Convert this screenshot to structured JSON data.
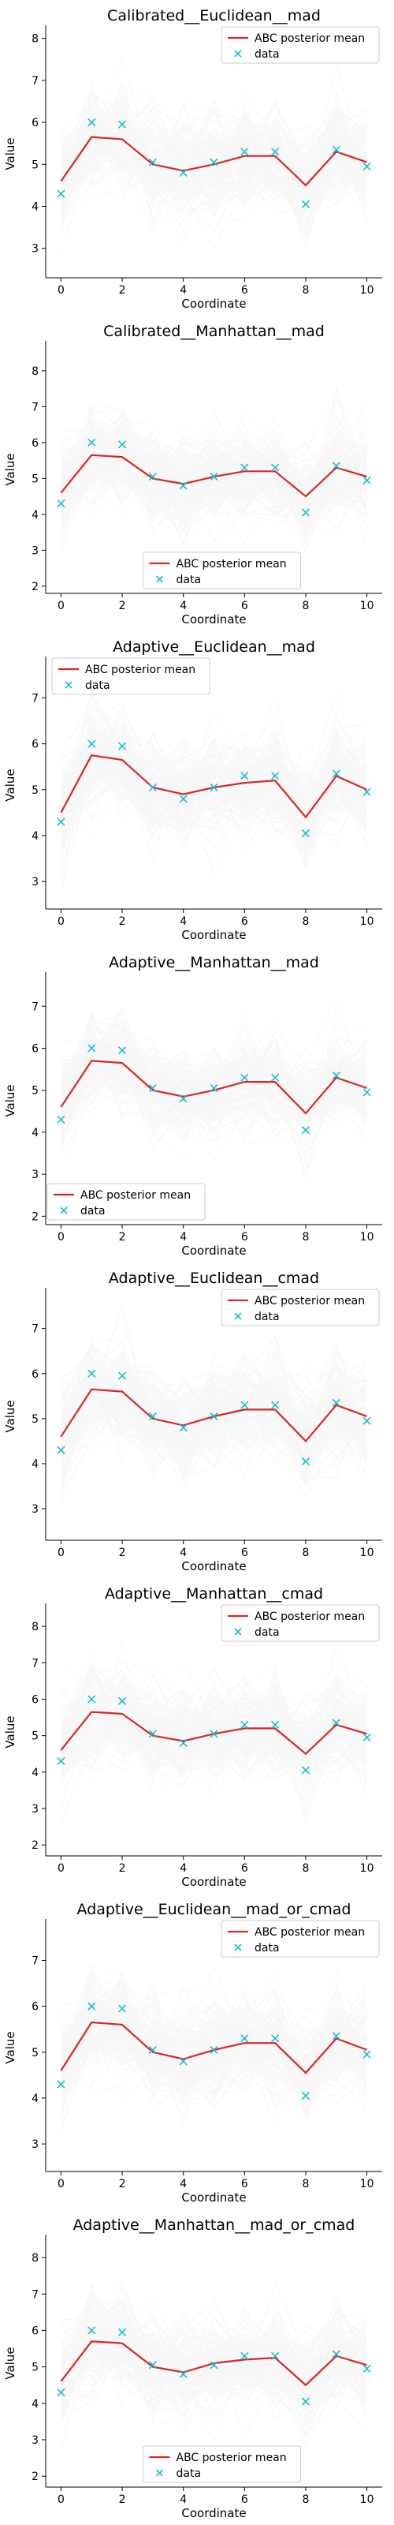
{
  "colors": {
    "mean_line": "#d62728",
    "data_marker": "#17becf",
    "sample_lines": "#888888"
  },
  "chart_data": [
    {
      "type": "line",
      "title": "Calibrated__Euclidean__mad",
      "xlabel": "Coordinate",
      "ylabel": "Value",
      "x": [
        0,
        1,
        2,
        3,
        4,
        5,
        6,
        7,
        8,
        9,
        10
      ],
      "xticks": [
        0,
        2,
        4,
        6,
        8,
        10
      ],
      "yticks": [
        3,
        4,
        5,
        6,
        7,
        8
      ],
      "ylim": [
        2.3,
        8.2
      ],
      "legend_position": "upper-right",
      "series": [
        {
          "name": "ABC posterior mean",
          "kind": "line",
          "values": [
            4.6,
            5.65,
            5.6,
            5.0,
            4.85,
            5.0,
            5.2,
            5.2,
            4.5,
            5.3,
            5.05
          ]
        },
        {
          "name": "data",
          "kind": "markers",
          "values": [
            4.3,
            6.0,
            5.95,
            5.05,
            4.8,
            5.05,
            5.3,
            5.3,
            4.05,
            5.35,
            4.95
          ]
        }
      ],
      "sample_spread": 1.1
    },
    {
      "type": "line",
      "title": "Calibrated__Manhattan__mad",
      "xlabel": "Coordinate",
      "ylabel": "Value",
      "x": [
        0,
        1,
        2,
        3,
        4,
        5,
        6,
        7,
        8,
        9,
        10
      ],
      "xticks": [
        0,
        2,
        4,
        6,
        8,
        10
      ],
      "yticks": [
        2,
        3,
        4,
        5,
        6,
        7,
        8
      ],
      "ylim": [
        1.8,
        8.7
      ],
      "legend_position": "lower-center",
      "series": [
        {
          "name": "ABC posterior mean",
          "kind": "line",
          "values": [
            4.6,
            5.65,
            5.6,
            5.0,
            4.85,
            5.05,
            5.2,
            5.2,
            4.5,
            5.3,
            5.05
          ]
        },
        {
          "name": "data",
          "kind": "markers",
          "values": [
            4.3,
            6.0,
            5.95,
            5.05,
            4.8,
            5.05,
            5.3,
            5.3,
            4.05,
            5.35,
            4.95
          ]
        }
      ],
      "sample_spread": 1.2
    },
    {
      "type": "line",
      "title": "Adaptive__Euclidean__mad",
      "xlabel": "Coordinate",
      "ylabel": "Value",
      "x": [
        0,
        1,
        2,
        3,
        4,
        5,
        6,
        7,
        8,
        9,
        10
      ],
      "xticks": [
        0,
        2,
        4,
        6,
        8,
        10
      ],
      "yticks": [
        3,
        4,
        5,
        6,
        7
      ],
      "ylim": [
        2.4,
        7.8
      ],
      "legend_position": "upper-left",
      "series": [
        {
          "name": "ABC posterior mean",
          "kind": "line",
          "values": [
            4.5,
            5.75,
            5.65,
            5.05,
            4.9,
            5.05,
            5.15,
            5.2,
            4.4,
            5.3,
            5.0
          ]
        },
        {
          "name": "data",
          "kind": "markers",
          "values": [
            4.3,
            6.0,
            5.95,
            5.05,
            4.8,
            5.05,
            5.3,
            5.3,
            4.05,
            5.35,
            4.95
          ]
        }
      ],
      "sample_spread": 1.0
    },
    {
      "type": "line",
      "title": "Adaptive__Manhattan__mad",
      "xlabel": "Coordinate",
      "ylabel": "Value",
      "x": [
        0,
        1,
        2,
        3,
        4,
        5,
        6,
        7,
        8,
        9,
        10
      ],
      "xticks": [
        0,
        2,
        4,
        6,
        8,
        10
      ],
      "yticks": [
        2,
        3,
        4,
        5,
        6,
        7
      ],
      "ylim": [
        1.8,
        7.7
      ],
      "legend_position": "lower-left",
      "series": [
        {
          "name": "ABC posterior mean",
          "kind": "line",
          "values": [
            4.6,
            5.7,
            5.65,
            5.0,
            4.85,
            5.0,
            5.2,
            5.2,
            4.45,
            5.3,
            5.05
          ]
        },
        {
          "name": "data",
          "kind": "markers",
          "values": [
            4.3,
            6.0,
            5.95,
            5.05,
            4.8,
            5.05,
            5.3,
            5.3,
            4.05,
            5.35,
            4.95
          ]
        }
      ],
      "sample_spread": 1.0
    },
    {
      "type": "line",
      "title": "Adaptive__Euclidean__cmad",
      "xlabel": "Coordinate",
      "ylabel": "Value",
      "x": [
        0,
        1,
        2,
        3,
        4,
        5,
        6,
        7,
        8,
        9,
        10
      ],
      "xticks": [
        0,
        2,
        4,
        6,
        8,
        10
      ],
      "yticks": [
        3,
        4,
        5,
        6,
        7
      ],
      "ylim": [
        2.3,
        7.8
      ],
      "legend_position": "upper-right",
      "series": [
        {
          "name": "ABC posterior mean",
          "kind": "line",
          "values": [
            4.6,
            5.65,
            5.6,
            5.0,
            4.85,
            5.05,
            5.2,
            5.2,
            4.5,
            5.3,
            5.05
          ]
        },
        {
          "name": "data",
          "kind": "markers",
          "values": [
            4.3,
            6.0,
            5.95,
            5.05,
            4.8,
            5.05,
            5.3,
            5.3,
            4.05,
            5.35,
            4.95
          ]
        }
      ],
      "sample_spread": 1.05
    },
    {
      "type": "line",
      "title": "Adaptive__Manhattan__cmad",
      "xlabel": "Coordinate",
      "ylabel": "Value",
      "x": [
        0,
        1,
        2,
        3,
        4,
        5,
        6,
        7,
        8,
        9,
        10
      ],
      "xticks": [
        0,
        2,
        4,
        6,
        8,
        10
      ],
      "yticks": [
        2,
        3,
        4,
        5,
        6,
        7,
        8
      ],
      "ylim": [
        1.7,
        8.5
      ],
      "legend_position": "upper-right",
      "series": [
        {
          "name": "ABC posterior mean",
          "kind": "line",
          "values": [
            4.6,
            5.65,
            5.6,
            5.0,
            4.85,
            5.05,
            5.2,
            5.2,
            4.5,
            5.3,
            5.05
          ]
        },
        {
          "name": "data",
          "kind": "markers",
          "values": [
            4.3,
            6.0,
            5.95,
            5.05,
            4.8,
            5.05,
            5.3,
            5.3,
            4.05,
            5.35,
            4.95
          ]
        }
      ],
      "sample_spread": 1.2
    },
    {
      "type": "line",
      "title": "Adaptive__Euclidean__mad_or_cmad",
      "xlabel": "Coordinate",
      "ylabel": "Value",
      "x": [
        0,
        1,
        2,
        3,
        4,
        5,
        6,
        7,
        8,
        9,
        10
      ],
      "xticks": [
        0,
        2,
        4,
        6,
        8,
        10
      ],
      "yticks": [
        3,
        4,
        5,
        6,
        7
      ],
      "ylim": [
        2.4,
        7.8
      ],
      "legend_position": "upper-right",
      "series": [
        {
          "name": "ABC posterior mean",
          "kind": "line",
          "values": [
            4.6,
            5.65,
            5.6,
            5.0,
            4.85,
            5.05,
            5.2,
            5.2,
            4.55,
            5.3,
            5.05
          ]
        },
        {
          "name": "data",
          "kind": "markers",
          "values": [
            4.3,
            6.0,
            5.95,
            5.05,
            4.8,
            5.05,
            5.3,
            5.3,
            4.05,
            5.35,
            4.95
          ]
        }
      ],
      "sample_spread": 1.0
    },
    {
      "type": "line",
      "title": "Adaptive__Manhattan__mad_or_cmad",
      "xlabel": "Coordinate",
      "ylabel": "Value",
      "x": [
        0,
        1,
        2,
        3,
        4,
        5,
        6,
        7,
        8,
        9,
        10
      ],
      "xticks": [
        0,
        2,
        4,
        6,
        8,
        10
      ],
      "yticks": [
        2,
        3,
        4,
        5,
        6,
        7,
        8
      ],
      "ylim": [
        1.7,
        8.5
      ],
      "legend_position": "lower-center",
      "series": [
        {
          "name": "ABC posterior mean",
          "kind": "line",
          "values": [
            4.6,
            5.7,
            5.65,
            5.0,
            4.85,
            5.1,
            5.2,
            5.25,
            4.5,
            5.3,
            5.05
          ]
        },
        {
          "name": "data",
          "kind": "markers",
          "values": [
            4.3,
            6.0,
            5.95,
            5.05,
            4.8,
            5.05,
            5.3,
            5.3,
            4.05,
            5.35,
            4.95
          ]
        }
      ],
      "sample_spread": 1.2
    }
  ]
}
